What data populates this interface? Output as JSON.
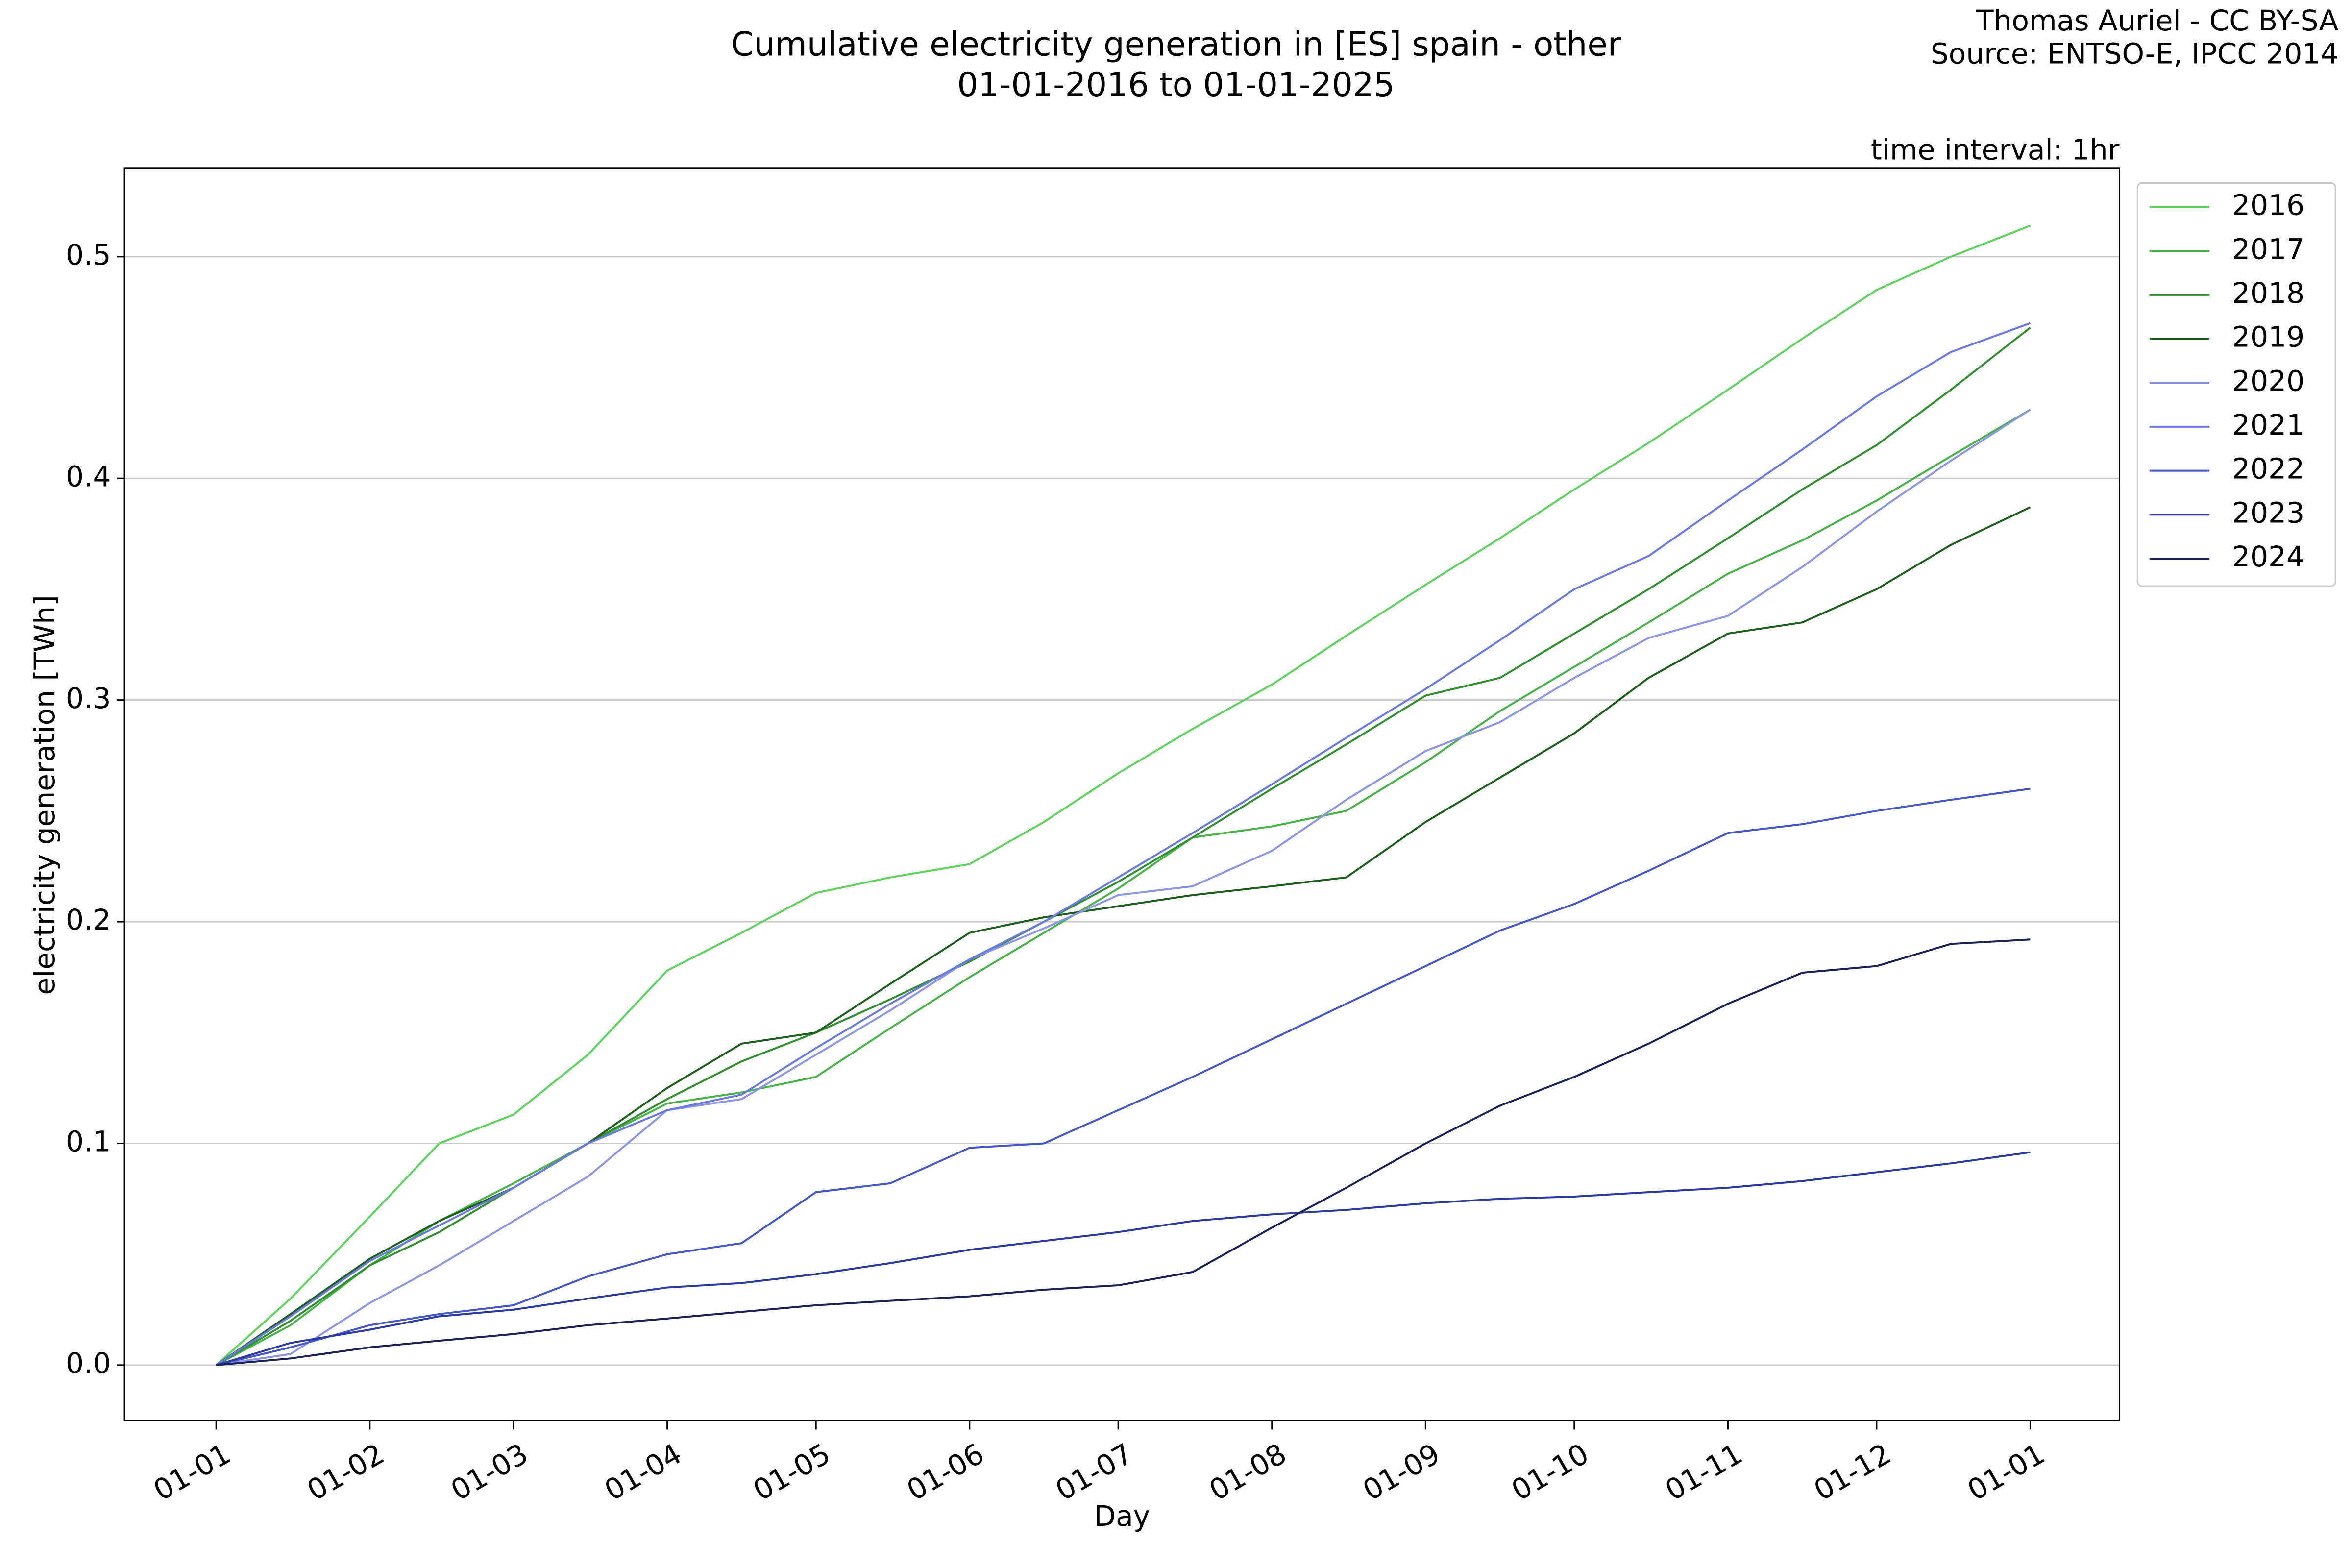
{
  "chart_data": {
    "type": "line",
    "title": "Cumulative electricity generation in [ES] spain - other",
    "subtitle": "01-01-2016 to 01-01-2025",
    "credit": "Thomas Auriel - CC BY-SA",
    "source": "Source: ENTSO-E, IPCC 2014",
    "annotation": "time interval: 1hr",
    "x_label": "Day",
    "y_label": "electricity generation [TWh]",
    "x": [
      0,
      15,
      31,
      45,
      60,
      75,
      91,
      106,
      121,
      136,
      152,
      167,
      182,
      197,
      213,
      228,
      244,
      259,
      274,
      289,
      305,
      320,
      335,
      350,
      366
    ],
    "xlim": [
      -18.5,
      384
    ],
    "xticks": [
      {
        "value": 0,
        "label": "01-01"
      },
      {
        "value": 31,
        "label": "01-02"
      },
      {
        "value": 60,
        "label": "01-03"
      },
      {
        "value": 91,
        "label": "01-04"
      },
      {
        "value": 121,
        "label": "01-05"
      },
      {
        "value": 152,
        "label": "01-06"
      },
      {
        "value": 182,
        "label": "01-07"
      },
      {
        "value": 213,
        "label": "01-08"
      },
      {
        "value": 244,
        "label": "01-09"
      },
      {
        "value": 274,
        "label": "01-10"
      },
      {
        "value": 305,
        "label": "01-11"
      },
      {
        "value": 335,
        "label": "01-12"
      },
      {
        "value": 366,
        "label": "01-01"
      }
    ],
    "ylim": [
      -0.025,
      0.54
    ],
    "yticks": [
      {
        "value": 0,
        "label": "0.0"
      },
      0.1,
      0.2,
      0.3,
      0.4,
      0.5
    ],
    "grid": true,
    "legend": "outside-right",
    "series": [
      {
        "name": "2016",
        "color": "#5cd35c",
        "values": [
          0,
          0.03,
          0.067,
          0.1,
          0.113,
          0.14,
          0.178,
          0.195,
          0.213,
          0.22,
          0.226,
          0.245,
          0.267,
          0.287,
          0.307,
          0.329,
          0.352,
          0.373,
          0.395,
          0.416,
          0.44,
          0.463,
          0.485,
          0.5,
          0.514
        ]
      },
      {
        "name": "2017",
        "color": "#45b345",
        "values": [
          0,
          0.018,
          0.045,
          0.065,
          0.082,
          0.1,
          0.118,
          0.123,
          0.13,
          0.152,
          0.175,
          0.195,
          0.215,
          0.238,
          0.243,
          0.25,
          0.272,
          0.295,
          0.315,
          0.335,
          0.357,
          0.372,
          0.39,
          0.41,
          0.431
        ]
      },
      {
        "name": "2018",
        "color": "#2f8f2f",
        "values": [
          0,
          0.02,
          0.045,
          0.06,
          0.08,
          0.1,
          0.12,
          0.137,
          0.15,
          0.165,
          0.182,
          0.2,
          0.218,
          0.238,
          0.26,
          0.28,
          0.302,
          0.31,
          0.33,
          0.35,
          0.373,
          0.395,
          0.415,
          0.44,
          0.468
        ]
      },
      {
        "name": "2019",
        "color": "#1c5e1c",
        "values": [
          0,
          0.023,
          0.048,
          0.065,
          0.08,
          0.1,
          0.125,
          0.145,
          0.15,
          0.172,
          0.195,
          0.202,
          0.207,
          0.212,
          0.216,
          0.22,
          0.245,
          0.265,
          0.285,
          0.31,
          0.33,
          0.335,
          0.35,
          0.37,
          0.387
        ]
      },
      {
        "name": "2020",
        "color": "#8c94e6",
        "values": [
          0,
          0.005,
          0.028,
          0.045,
          0.065,
          0.085,
          0.115,
          0.12,
          0.14,
          0.16,
          0.183,
          0.197,
          0.212,
          0.216,
          0.232,
          0.255,
          0.277,
          0.29,
          0.31,
          0.328,
          0.338,
          0.36,
          0.385,
          0.408,
          0.431
        ]
      },
      {
        "name": "2021",
        "color": "#6a78e3",
        "values": [
          0,
          0.022,
          0.047,
          0.063,
          0.08,
          0.1,
          0.115,
          0.122,
          0.143,
          0.163,
          0.183,
          0.2,
          0.22,
          0.24,
          0.262,
          0.283,
          0.305,
          0.327,
          0.35,
          0.365,
          0.39,
          0.413,
          0.437,
          0.457,
          0.47
        ]
      },
      {
        "name": "2022",
        "color": "#4456c9",
        "values": [
          0,
          0.008,
          0.018,
          0.023,
          0.027,
          0.04,
          0.05,
          0.055,
          0.078,
          0.082,
          0.098,
          0.1,
          0.115,
          0.13,
          0.147,
          0.163,
          0.18,
          0.196,
          0.208,
          0.223,
          0.24,
          0.244,
          0.25,
          0.255,
          0.26
        ]
      },
      {
        "name": "2023",
        "color": "#2b3aa3",
        "values": [
          0,
          0.01,
          0.016,
          0.022,
          0.025,
          0.03,
          0.035,
          0.037,
          0.041,
          0.046,
          0.052,
          0.056,
          0.06,
          0.065,
          0.068,
          0.07,
          0.073,
          0.075,
          0.076,
          0.078,
          0.08,
          0.083,
          0.087,
          0.091,
          0.096
        ]
      },
      {
        "name": "2024",
        "color": "#1b2055",
        "values": [
          0,
          0.003,
          0.008,
          0.011,
          0.014,
          0.018,
          0.021,
          0.024,
          0.027,
          0.029,
          0.031,
          0.034,
          0.036,
          0.042,
          0.062,
          0.08,
          0.1,
          0.117,
          0.13,
          0.145,
          0.163,
          0.177,
          0.18,
          0.19,
          0.192
        ]
      }
    ]
  }
}
